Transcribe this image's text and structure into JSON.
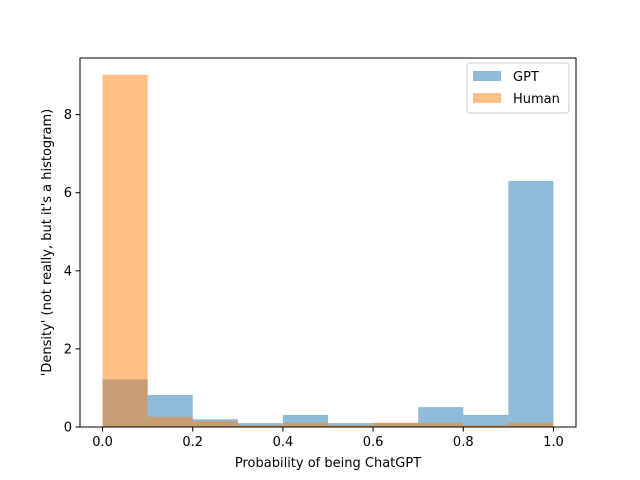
{
  "chart_data": {
    "type": "bar",
    "subtype": "overlaid-histogram",
    "xlabel": "Probability of being ChatGPT",
    "ylabel": "'Density' (not really, but it's a histogram)",
    "xlim": [
      -0.05,
      1.05
    ],
    "ylim": [
      0,
      9.45
    ],
    "xticks": [
      "0.0",
      "0.2",
      "0.4",
      "0.6",
      "0.8",
      "1.0"
    ],
    "yticks": [
      "0",
      "2",
      "4",
      "6",
      "8"
    ],
    "bin_edges": [
      0.0,
      0.1,
      0.2,
      0.3,
      0.4,
      0.5,
      0.6,
      0.7,
      0.8,
      0.9,
      1.0
    ],
    "grid": false,
    "legend_position": "top-right",
    "series": [
      {
        "name": "GPT",
        "color": "#1f77b4",
        "alpha": 0.5,
        "values": [
          1.22,
          0.82,
          0.2,
          0.1,
          0.31,
          0.1,
          0.1,
          0.51,
          0.31,
          6.3
        ]
      },
      {
        "name": "Human",
        "color": "#ff7f0e",
        "alpha": 0.5,
        "values": [
          9.02,
          0.26,
          0.15,
          0.05,
          0.11,
          0.05,
          0.11,
          0.11,
          0.05,
          0.11
        ]
      }
    ]
  }
}
